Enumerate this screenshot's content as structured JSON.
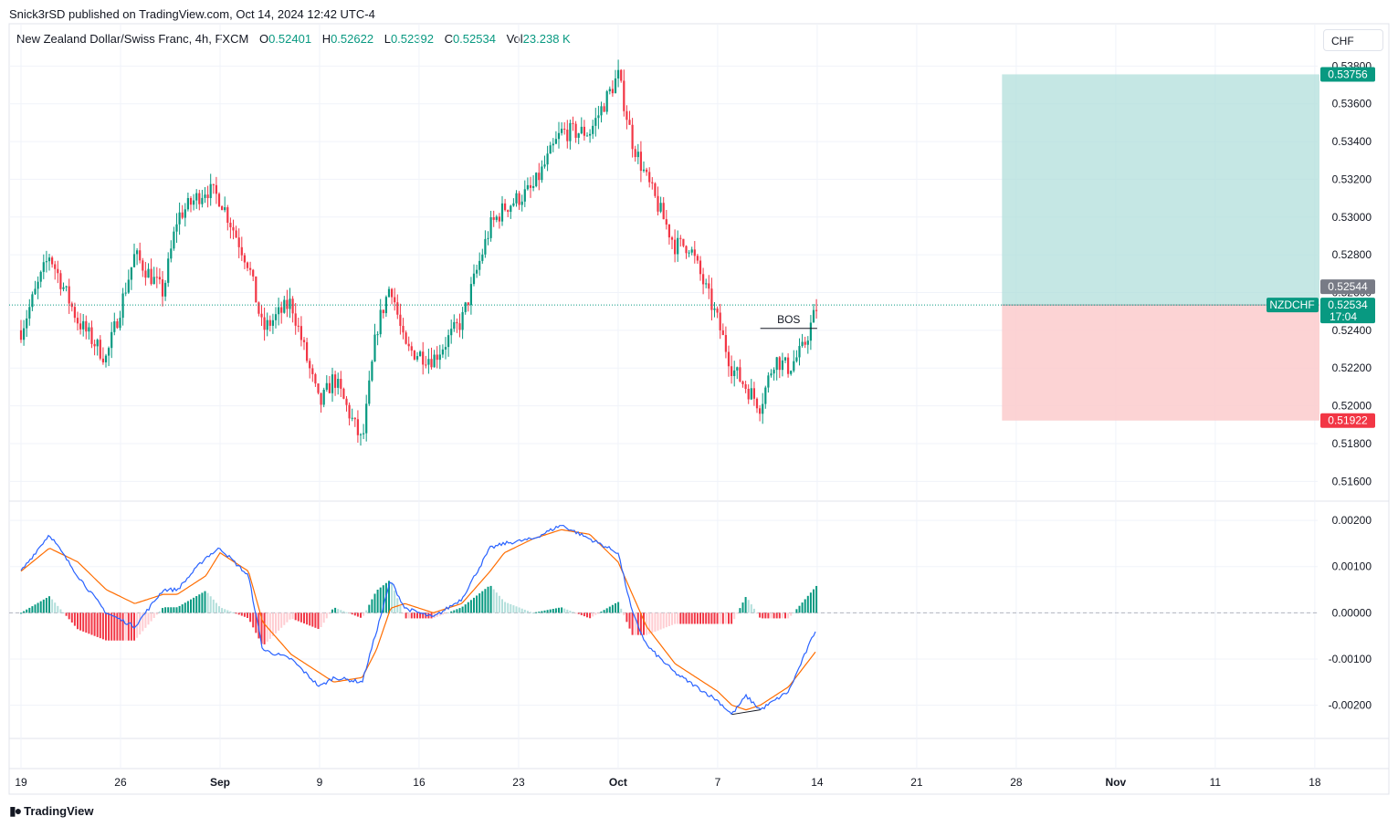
{
  "header": {
    "published_by": "Snick3rSD published on TradingView.com, Oct 14, 2024 12:42 UTC-4"
  },
  "legend": {
    "symbol": "New Zealand Dollar/Swiss Franc, 4h, FXCM",
    "o_label": "O",
    "o_value": "0.52401",
    "h_label": "H",
    "h_value": "0.52622",
    "l_label": "L",
    "l_value": "0.52392",
    "c_label": "C",
    "c_value": "0.52534",
    "vol_label": "Vol",
    "vol_value": "23.238 K"
  },
  "currency_button": "CHF",
  "footer": {
    "brand": "TradingView"
  },
  "colors": {
    "up": "#089981",
    "down": "#f23645",
    "up_fill_light": "#b2dfdb",
    "down_fill_light": "#ffcdd2",
    "macd_line": "#2962ff",
    "signal_line": "#ff6d00",
    "grid": "#f0f3fa",
    "target_zone": "#b2dfdb",
    "stop_zone": "#fccbcd"
  },
  "chart_data": [
    {
      "type": "candlestick",
      "symbol": "NZDCHF",
      "timeframe": "4h",
      "y_ticks": [
        "0.53800",
        "0.53600",
        "0.53400",
        "0.53200",
        "0.53000",
        "0.52800",
        "0.52600",
        "0.52400",
        "0.52200",
        "0.52000",
        "0.51800",
        "0.51600"
      ],
      "ylim": [
        0.515,
        0.5385
      ],
      "x_ticks": [
        "19",
        "26",
        "Sep",
        "9",
        "16",
        "23",
        "Oct",
        "7",
        "14",
        "21",
        "28",
        "Nov",
        "11",
        "18"
      ],
      "price_path": [
        [
          "Aug 19",
          0.524
        ],
        [
          "Aug 21",
          0.528
        ],
        [
          "Aug 23",
          0.5245
        ],
        [
          "Aug 25",
          0.5225
        ],
        [
          "Aug 27",
          0.528
        ],
        [
          "Aug 29",
          0.526
        ],
        [
          "Aug 30",
          0.53
        ],
        [
          "Sep 1",
          0.5315
        ],
        [
          "Sep 2",
          0.531
        ],
        [
          "Sep 4",
          0.5275
        ],
        [
          "Sep 5",
          0.524
        ],
        [
          "Sep 7",
          0.5255
        ],
        [
          "Sep 9",
          0.52
        ],
        [
          "Sep 10",
          0.5215
        ],
        [
          "Sep 12",
          0.518
        ],
        [
          "Sep 13",
          0.524
        ],
        [
          "Sep 14",
          0.5265
        ],
        [
          "Sep 15",
          0.523
        ],
        [
          "Sep 17",
          0.5225
        ],
        [
          "Sep 19",
          0.5245
        ],
        [
          "Sep 21",
          0.5295
        ],
        [
          "Sep 22",
          0.5305
        ],
        [
          "Sep 24",
          0.5315
        ],
        [
          "Sep 26",
          0.5345
        ],
        [
          "Sep 28",
          0.5345
        ],
        [
          "Sep 30",
          0.5375
        ],
        [
          "Oct 1",
          0.534
        ],
        [
          "Oct 2",
          0.532
        ],
        [
          "Oct 4",
          0.5285
        ],
        [
          "Oct 5",
          0.5285
        ],
        [
          "Oct 7",
          0.5245
        ],
        [
          "Oct 8",
          0.522
        ],
        [
          "Oct 9",
          0.521
        ],
        [
          "Oct 10",
          0.52
        ],
        [
          "Oct 11",
          0.5225
        ],
        [
          "Oct 12",
          0.522
        ],
        [
          "Oct 13",
          0.523
        ],
        [
          "Oct 14",
          0.5253
        ]
      ],
      "last_price": {
        "symbol_label": "NZDCHF",
        "price": "0.52534",
        "countdown": "17:04"
      },
      "high_marker": "0.52544",
      "annotation": {
        "text": "BOS",
        "price": 0.5241,
        "from": "Oct 10",
        "to": "Oct 14"
      },
      "long_position": {
        "target": "0.53756",
        "entry": 0.52534,
        "stop": "0.51922",
        "from": "Oct 27",
        "to": "Nov 18"
      }
    },
    {
      "type": "macd",
      "y_ticks": [
        "0.00200",
        "0.00100",
        "0.00000",
        "-0.00100",
        "-0.00200"
      ],
      "ylim": [
        -0.0027,
        0.0022
      ],
      "macd": [
        [
          "Aug 19",
          0.0009
        ],
        [
          "Aug 21",
          0.0017
        ],
        [
          "Aug 23",
          0.0008
        ],
        [
          "Aug 25",
          0.0
        ],
        [
          "Aug 27",
          -0.0003
        ],
        [
          "Aug 29",
          0.0005
        ],
        [
          "Aug 30",
          0.0005
        ],
        [
          "Sep 1",
          0.0012
        ],
        [
          "Sep 2",
          0.0014
        ],
        [
          "Sep 4",
          0.0008
        ],
        [
          "Sep 5",
          -0.0008
        ],
        [
          "Sep 7",
          -0.001
        ],
        [
          "Sep 9",
          -0.0016
        ],
        [
          "Sep 10",
          -0.0014
        ],
        [
          "Sep 12",
          -0.0015
        ],
        [
          "Sep 13",
          -0.0004
        ],
        [
          "Sep 14",
          0.0007
        ],
        [
          "Sep 15",
          0.0001
        ],
        [
          "Sep 17",
          -0.0001
        ],
        [
          "Sep 19",
          0.0003
        ],
        [
          "Sep 21",
          0.0014
        ],
        [
          "Sep 22",
          0.0015
        ],
        [
          "Sep 24",
          0.0016
        ],
        [
          "Sep 26",
          0.0019
        ],
        [
          "Sep 28",
          0.0016
        ],
        [
          "Sep 30",
          0.0013
        ],
        [
          "Oct 1",
          0.0
        ],
        [
          "Oct 2",
          -0.0007
        ],
        [
          "Oct 4",
          -0.0013
        ],
        [
          "Oct 5",
          -0.0015
        ],
        [
          "Oct 7",
          -0.0019
        ],
        [
          "Oct 8",
          -0.0022
        ],
        [
          "Oct 9",
          -0.0018
        ],
        [
          "Oct 10",
          -0.0021
        ],
        [
          "Oct 11",
          -0.0019
        ],
        [
          "Oct 12",
          -0.0017
        ],
        [
          "Oct 13",
          -0.001
        ],
        [
          "Oct 14",
          -0.0003
        ]
      ],
      "signal": [
        [
          "Aug 19",
          0.0009
        ],
        [
          "Aug 21",
          0.0014
        ],
        [
          "Aug 23",
          0.0011
        ],
        [
          "Aug 25",
          0.0005
        ],
        [
          "Aug 27",
          0.0002
        ],
        [
          "Aug 29",
          0.0004
        ],
        [
          "Aug 30",
          0.0004
        ],
        [
          "Sep 1",
          0.0008
        ],
        [
          "Sep 2",
          0.0013
        ],
        [
          "Sep 4",
          0.0009
        ],
        [
          "Sep 5",
          -0.0002
        ],
        [
          "Sep 7",
          -0.0009
        ],
        [
          "Sep 9",
          -0.0013
        ],
        [
          "Sep 10",
          -0.0015
        ],
        [
          "Sep 12",
          -0.0014
        ],
        [
          "Sep 13",
          -0.0008
        ],
        [
          "Sep 14",
          0.0001
        ],
        [
          "Sep 15",
          0.0002
        ],
        [
          "Sep 17",
          0.0
        ],
        [
          "Sep 19",
          0.0002
        ],
        [
          "Sep 21",
          0.0009
        ],
        [
          "Sep 22",
          0.0013
        ],
        [
          "Sep 24",
          0.0016
        ],
        [
          "Sep 26",
          0.0018
        ],
        [
          "Sep 28",
          0.0017
        ],
        [
          "Sep 30",
          0.0011
        ],
        [
          "Oct 1",
          0.0004
        ],
        [
          "Oct 2",
          -0.0003
        ],
        [
          "Oct 4",
          -0.0011
        ],
        [
          "Oct 5",
          -0.0013
        ],
        [
          "Oct 7",
          -0.0017
        ],
        [
          "Oct 8",
          -0.002
        ],
        [
          "Oct 9",
          -0.0021
        ],
        [
          "Oct 10",
          -0.002
        ],
        [
          "Oct 11",
          -0.0018
        ],
        [
          "Oct 12",
          -0.0016
        ],
        [
          "Oct 13",
          -0.0012
        ],
        [
          "Oct 14",
          -0.0008
        ]
      ],
      "divergence_line": {
        "from": [
          "Oct 8",
          -0.0022
        ],
        "to": [
          "Oct 10",
          -0.0021
        ]
      }
    }
  ]
}
